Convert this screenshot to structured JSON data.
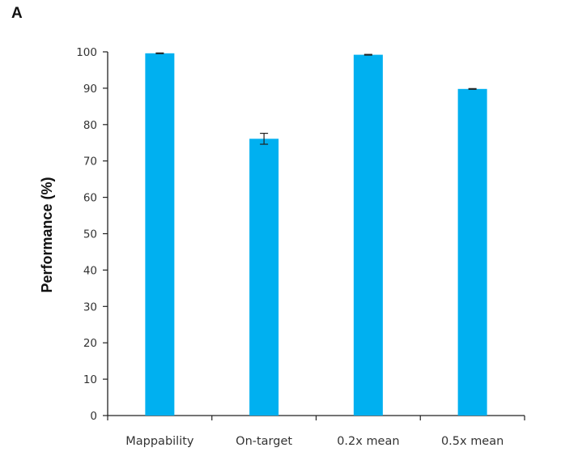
{
  "panel_label": "A",
  "colors": {
    "bar": "#00b0f0",
    "axis": "#222222",
    "errorbar": "#222222"
  },
  "chart_data": {
    "type": "bar",
    "title": "",
    "xlabel": "",
    "ylabel": "Performance (%)",
    "ylim": [
      0,
      100
    ],
    "yticks": [
      0,
      10,
      20,
      30,
      40,
      50,
      60,
      70,
      80,
      90,
      100
    ],
    "categories": [
      "Mappability",
      "On-target",
      "0.2x mean",
      "0.5x mean"
    ],
    "values": [
      99.6,
      76.1,
      99.2,
      89.8
    ],
    "error": [
      0.1,
      1.5,
      0.1,
      0.1
    ],
    "grid": false,
    "legend": "none"
  }
}
